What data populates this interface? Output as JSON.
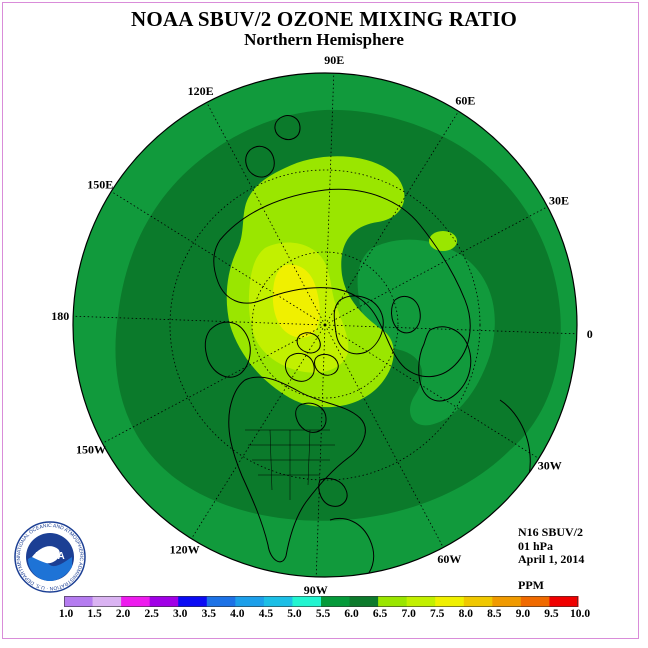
{
  "title": "NOAA SBUV/2 OZONE MIXING RATIO",
  "subtitle": "Northern Hemisphere",
  "map": {
    "projection": "north-polar-stereographic",
    "quantity": "ozone mixing ratio",
    "longitude_labels": [
      {
        "text": "90E",
        "lon": 90
      },
      {
        "text": "60E",
        "lon": 60
      },
      {
        "text": "30E",
        "lon": 30
      },
      {
        "text": "0",
        "lon": 0
      },
      {
        "text": "30W",
        "lon": -30
      },
      {
        "text": "60W",
        "lon": -60
      },
      {
        "text": "90W",
        "lon": -90
      },
      {
        "text": "120W",
        "lon": -120
      },
      {
        "text": "150W",
        "lon": -150
      },
      {
        "text": "180",
        "lon": 180
      },
      {
        "text": "150E",
        "lon": 150
      },
      {
        "text": "120E",
        "lon": 120
      }
    ],
    "latitude_circles": [
      30,
      60
    ]
  },
  "info": {
    "instrument": "N16 SBUV/2",
    "level": "01 hPa",
    "date": "April 1, 2014",
    "units": "PPM"
  },
  "colorbar": {
    "labels": [
      "1.0",
      "1.5",
      "2.0",
      "2.5",
      "3.0",
      "3.5",
      "4.0",
      "4.5",
      "5.0",
      "5.5",
      "6.0",
      "6.5",
      "7.0",
      "7.5",
      "8.0",
      "8.5",
      "9.0",
      "9.5",
      "10.0"
    ],
    "colors": [
      "#b57cf0",
      "#dab3f2",
      "#ee1cee",
      "#a100e6",
      "#0b0bf4",
      "#1d72e6",
      "#1c9fea",
      "#1cbfe6",
      "#22f5d0",
      "#059a3a",
      "#0d7a2c",
      "#9ae600",
      "#c2f000",
      "#f0f000",
      "#f0c800",
      "#f09a00",
      "#f06a00",
      "#f00000",
      "#a0522d"
    ]
  },
  "logo": {
    "text": "NOAA",
    "ring_text": "NATIONAL OCEANIC AND ATMOSPHERIC ADMINISTRATION · U.S. DEPARTMENT OF COMMERCE ·"
  }
}
